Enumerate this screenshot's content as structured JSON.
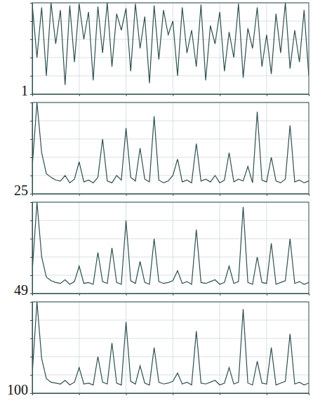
{
  "chart_data": [
    {
      "type": "line",
      "title": "1",
      "color": "#2f4f4f",
      "grid": true,
      "tick_labels": false,
      "xlim": [
        0,
        59
      ],
      "xticks": [
        0,
        10,
        20,
        30,
        40,
        50
      ],
      "ylim": [
        0,
        100
      ],
      "yticks": [
        0,
        20,
        40,
        60,
        80,
        100
      ],
      "x": [
        0,
        1,
        2,
        3,
        4,
        5,
        6,
        7,
        8,
        9,
        10,
        11,
        12,
        13,
        14,
        15,
        16,
        17,
        18,
        19,
        20,
        21,
        22,
        23,
        24,
        25,
        26,
        27,
        28,
        29,
        30,
        31,
        32,
        33,
        34,
        35,
        36,
        37,
        38,
        39,
        40,
        41,
        42,
        43,
        44,
        45,
        46,
        47,
        48,
        49,
        50,
        51,
        52,
        53,
        54,
        55,
        56,
        57,
        58,
        59
      ],
      "values": [
        98,
        40,
        95,
        20,
        100,
        55,
        92,
        10,
        97,
        35,
        99,
        60,
        90,
        15,
        96,
        45,
        100,
        30,
        88,
        70,
        94,
        25,
        99,
        50,
        85,
        12,
        97,
        38,
        92,
        65,
        80,
        20,
        95,
        45,
        70,
        30,
        98,
        15,
        75,
        55,
        90,
        25,
        68,
        40,
        99,
        18,
        72,
        50,
        95,
        30,
        65,
        22,
        88,
        45,
        100,
        28,
        70,
        35,
        92,
        20
      ]
    },
    {
      "type": "line",
      "title": "25",
      "color": "#2f4f4f",
      "grid": true,
      "tick_labels": false,
      "xlim": [
        0,
        59
      ],
      "xticks": [
        0,
        10,
        20,
        30,
        40,
        50
      ],
      "ylim": [
        0,
        100
      ],
      "yticks": [
        0,
        20,
        40,
        60,
        80,
        100
      ],
      "x": [
        0,
        1,
        2,
        3,
        4,
        5,
        6,
        7,
        8,
        9,
        10,
        11,
        12,
        13,
        14,
        15,
        16,
        17,
        18,
        19,
        20,
        21,
        22,
        23,
        24,
        25,
        26,
        27,
        28,
        29,
        30,
        31,
        32,
        33,
        34,
        35,
        36,
        37,
        38,
        39,
        40,
        41,
        42,
        43,
        44,
        45,
        46,
        47,
        48,
        49,
        50,
        51,
        52,
        53,
        54,
        55,
        56,
        57,
        58,
        59
      ],
      "values": [
        30,
        100,
        45,
        22,
        18,
        15,
        14,
        20,
        12,
        16,
        35,
        13,
        15,
        12,
        18,
        60,
        14,
        12,
        20,
        15,
        72,
        18,
        14,
        50,
        16,
        13,
        85,
        15,
        12,
        14,
        20,
        38,
        13,
        15,
        12,
        55,
        14,
        16,
        13,
        20,
        12,
        15,
        45,
        13,
        16,
        14,
        30,
        12,
        90,
        15,
        13,
        40,
        14,
        12,
        16,
        75,
        13,
        15,
        12,
        14
      ]
    },
    {
      "type": "line",
      "title": "49",
      "color": "#2f4f4f",
      "grid": true,
      "tick_labels": false,
      "xlim": [
        0,
        59
      ],
      "xticks": [
        0,
        10,
        20,
        30,
        40,
        50
      ],
      "ylim": [
        0,
        100
      ],
      "yticks": [
        0,
        20,
        40,
        60,
        80,
        100
      ],
      "x": [
        0,
        1,
        2,
        3,
        4,
        5,
        6,
        7,
        8,
        9,
        10,
        11,
        12,
        13,
        14,
        15,
        16,
        17,
        18,
        19,
        20,
        21,
        22,
        23,
        24,
        25,
        26,
        27,
        28,
        29,
        30,
        31,
        32,
        33,
        34,
        35,
        36,
        37,
        38,
        39,
        40,
        41,
        42,
        43,
        44,
        45,
        46,
        47,
        48,
        49,
        50,
        51,
        52,
        53,
        54,
        55,
        56,
        57,
        58,
        59
      ],
      "values": [
        25,
        100,
        40,
        18,
        14,
        12,
        11,
        15,
        10,
        13,
        30,
        11,
        12,
        10,
        45,
        13,
        11,
        50,
        12,
        10,
        80,
        14,
        11,
        35,
        12,
        10,
        60,
        13,
        11,
        12,
        14,
        25,
        11,
        13,
        10,
        70,
        12,
        11,
        13,
        15,
        10,
        12,
        30,
        11,
        13,
        95,
        12,
        10,
        40,
        12,
        11,
        55,
        10,
        12,
        14,
        60,
        11,
        13,
        10,
        12
      ]
    },
    {
      "type": "line",
      "title": "100",
      "color": "#2f4f4f",
      "grid": true,
      "tick_labels": false,
      "xlim": [
        0,
        59
      ],
      "xticks": [
        0,
        10,
        20,
        30,
        40,
        50
      ],
      "ylim": [
        0,
        100
      ],
      "yticks": [
        0,
        20,
        40,
        60,
        80,
        100
      ],
      "x": [
        0,
        1,
        2,
        3,
        4,
        5,
        6,
        7,
        8,
        9,
        10,
        11,
        12,
        13,
        14,
        15,
        16,
        17,
        18,
        19,
        20,
        21,
        22,
        23,
        24,
        25,
        26,
        27,
        28,
        29,
        30,
        31,
        32,
        33,
        34,
        35,
        36,
        37,
        38,
        39,
        40,
        41,
        42,
        43,
        44,
        45,
        46,
        47,
        48,
        49,
        50,
        51,
        52,
        53,
        54,
        55,
        56,
        57,
        58,
        59
      ],
      "values": [
        22,
        100,
        38,
        16,
        12,
        11,
        10,
        14,
        9,
        12,
        28,
        10,
        11,
        9,
        40,
        12,
        10,
        55,
        11,
        9,
        78,
        13,
        10,
        30,
        11,
        9,
        50,
        12,
        10,
        11,
        13,
        22,
        10,
        12,
        9,
        68,
        11,
        10,
        12,
        14,
        9,
        11,
        28,
        10,
        12,
        92,
        11,
        9,
        35,
        11,
        10,
        50,
        9,
        11,
        13,
        65,
        10,
        12,
        9,
        11
      ]
    }
  ]
}
